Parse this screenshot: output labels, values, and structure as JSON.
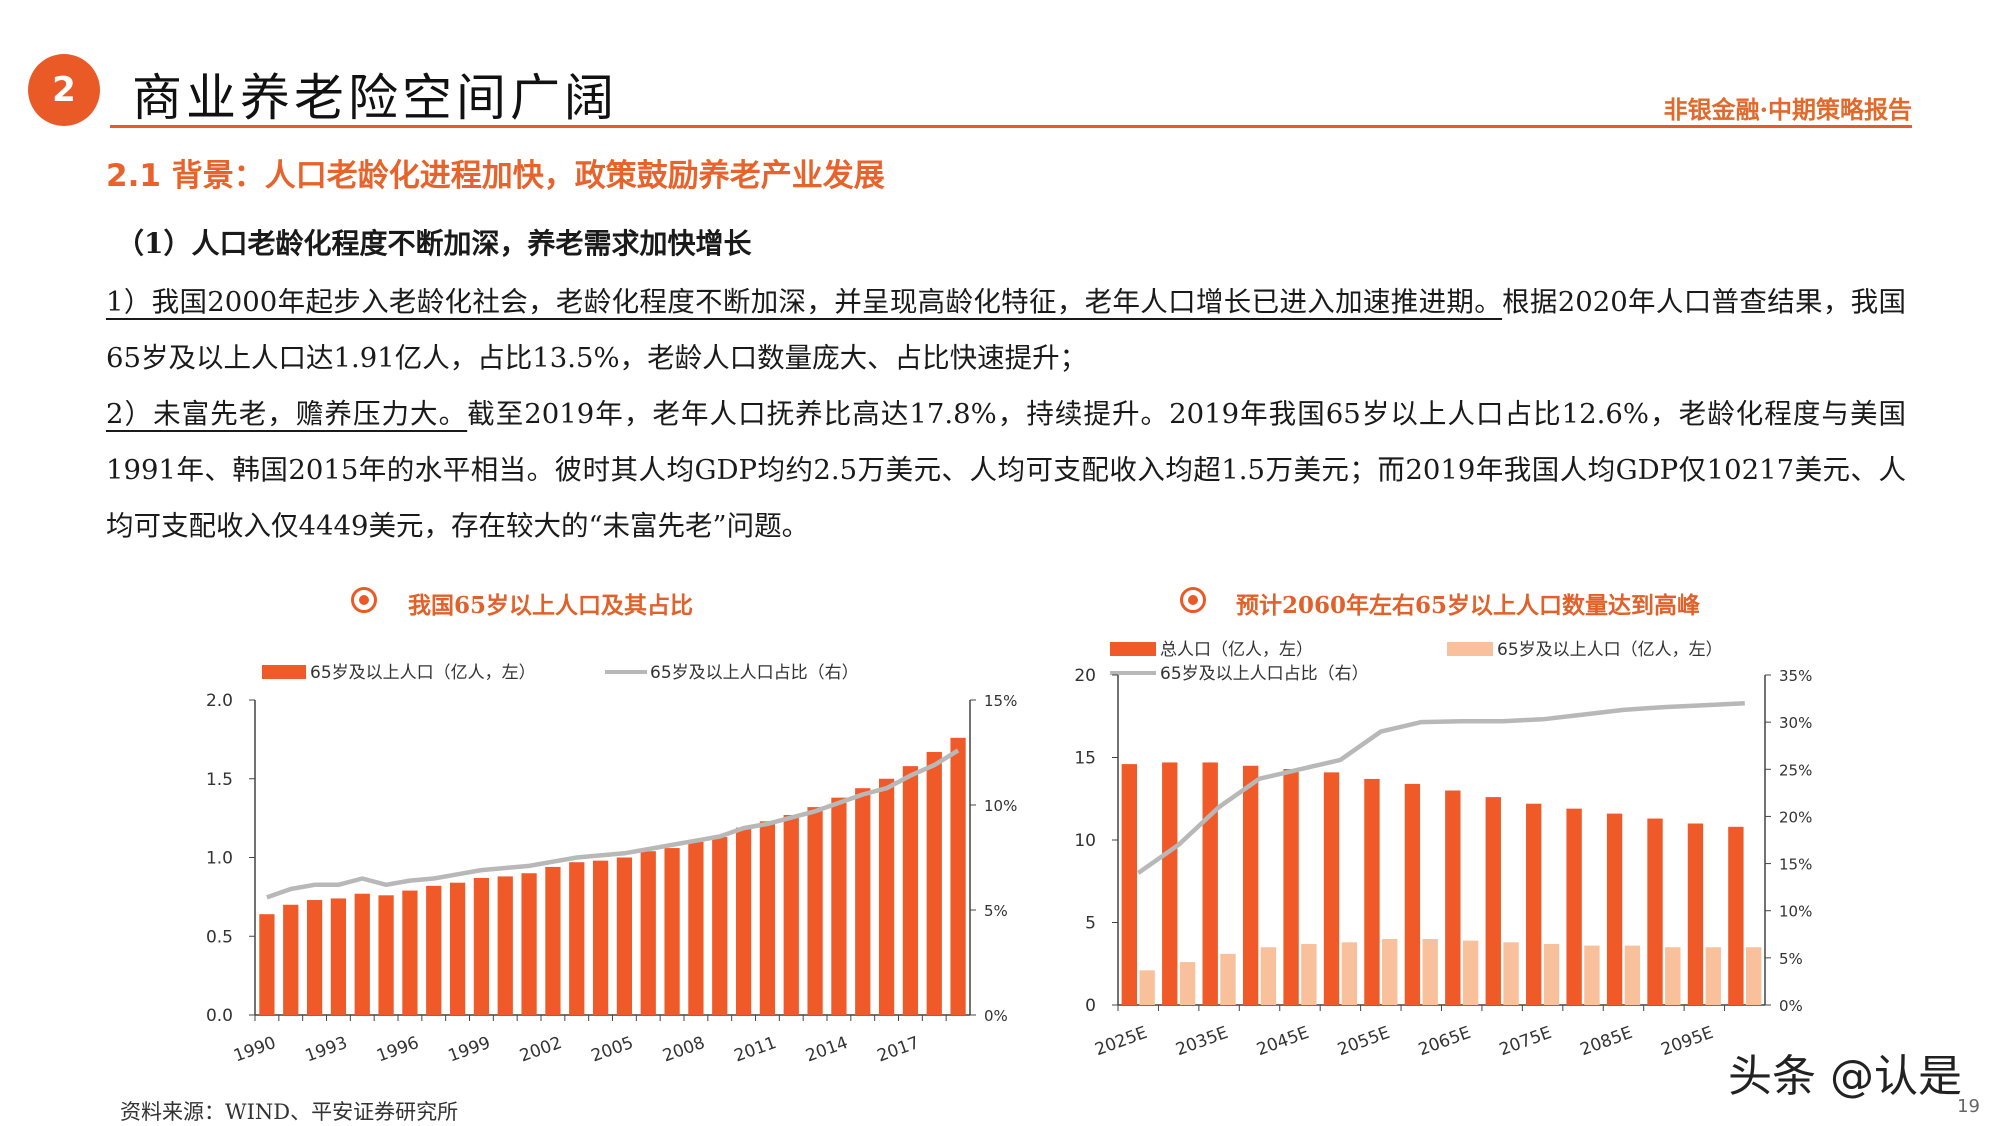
{
  "header": {
    "section_number": "2",
    "title": "商业养老险空间广阔",
    "brand": "非银金融·中期策略报告"
  },
  "subheading": {
    "num": "2.1",
    "text": " 背景：人口老龄化进程加快，政策鼓励养老产业发展"
  },
  "point_title": "（1）人口老龄化程度不断加深，养老需求加快增长",
  "para1": {
    "underlined": "1）我国2000年起步入老龄化社会，老龄化程度不断加深，并呈现高龄化特征，老年人口增长已进入加速推进期。",
    "rest": "根据2020年人口普查结果，我国65岁及以上人口达1.91亿人，占比13.5%，老龄人口数量庞大、占比快速提升；"
  },
  "para2": {
    "underlined": "2）未富先老，赡养压力大。",
    "rest": "截至2019年，老年人口抚养比高达17.8%，持续提升。2019年我国65岁以上人口占比12.6%，老龄化程度与美国1991年、韩国2015年的水平相当。彼时其人均GDP均约2.5万美元、人均可支配收入均超1.5万美元；而2019年我国人均GDP仅10217美元、人均可支配收入仅4449美元，存在较大的“未富先老”问题。"
  },
  "footer": {
    "source": "资料来源：WIND、平安证券研究所",
    "page": "19",
    "watermark": "头条 @认是"
  },
  "colors": {
    "accent": "#ea5a26",
    "bar": "#ef5a28",
    "bar_light": "#f8c09b",
    "line": "#b8b8b8"
  },
  "chart_data": [
    {
      "type": "bar",
      "title": "我国65岁以上人口及其占比",
      "legend_bar": "65岁及以上人口（亿人，左）",
      "legend_line": "65岁及以上人口占比（右）",
      "categories": [
        "1990",
        "1991",
        "1992",
        "1993",
        "1994",
        "1995",
        "1996",
        "1997",
        "1998",
        "1999",
        "2000",
        "2001",
        "2002",
        "2003",
        "2004",
        "2005",
        "2006",
        "2007",
        "2008",
        "2009",
        "2010",
        "2011",
        "2012",
        "2013",
        "2014",
        "2015",
        "2016",
        "2017",
        "2018",
        "2019"
      ],
      "xtick_labels": [
        "1990",
        "1993",
        "1996",
        "1999",
        "2002",
        "2005",
        "2008",
        "2011",
        "2014",
        "2017"
      ],
      "series": [
        {
          "name": "65岁及以上人口（亿人，左）",
          "axis": "left",
          "values": [
            0.64,
            0.7,
            0.73,
            0.74,
            0.77,
            0.76,
            0.79,
            0.82,
            0.84,
            0.87,
            0.88,
            0.9,
            0.94,
            0.97,
            0.98,
            1.0,
            1.04,
            1.06,
            1.1,
            1.13,
            1.19,
            1.23,
            1.27,
            1.32,
            1.38,
            1.44,
            1.5,
            1.58,
            1.67,
            1.76
          ]
        },
        {
          "name": "65岁及以上人口占比（右）",
          "axis": "right",
          "values": [
            5.6,
            6.0,
            6.2,
            6.2,
            6.5,
            6.2,
            6.4,
            6.5,
            6.7,
            6.9,
            7.0,
            7.1,
            7.3,
            7.5,
            7.6,
            7.7,
            7.9,
            8.1,
            8.3,
            8.5,
            8.9,
            9.1,
            9.4,
            9.7,
            10.1,
            10.5,
            10.8,
            11.4,
            11.9,
            12.6
          ]
        }
      ],
      "ylim_left": [
        0,
        2.0
      ],
      "yticks_left": [
        "0.0",
        "0.5",
        "1.0",
        "1.5",
        "2.0"
      ],
      "ylim_right": [
        0,
        15
      ],
      "yticks_right": [
        "0%",
        "5%",
        "10%",
        "15%"
      ]
    },
    {
      "type": "bar",
      "title": "预计2060年左右65岁以上人口数量达到高峰",
      "legend_total": "总人口（亿人，左）",
      "legend_elderly": "65岁及以上人口（亿人，左）",
      "legend_line": "65岁及以上人口占比（右）",
      "categories": [
        "2025E",
        "2030E",
        "2035E",
        "2040E",
        "2045E",
        "2050E",
        "2055E",
        "2060E",
        "2065E",
        "2070E",
        "2075E",
        "2080E",
        "2085E",
        "2090E",
        "2095E",
        "2100E"
      ],
      "xtick_labels": [
        "2025E",
        "2035E",
        "2045E",
        "2055E",
        "2065E",
        "2075E",
        "2085E",
        "2095E"
      ],
      "series": [
        {
          "name": "总人口（亿人，左）",
          "axis": "left",
          "values": [
            14.6,
            14.7,
            14.7,
            14.5,
            14.3,
            14.1,
            13.7,
            13.4,
            13.0,
            12.6,
            12.2,
            11.9,
            11.6,
            11.3,
            11.0,
            10.8
          ]
        },
        {
          "name": "65岁及以上人口（亿人，左）",
          "axis": "left",
          "values": [
            2.1,
            2.6,
            3.1,
            3.5,
            3.7,
            3.8,
            4.0,
            4.0,
            3.9,
            3.8,
            3.7,
            3.6,
            3.6,
            3.5,
            3.5,
            3.5
          ]
        },
        {
          "name": "65岁及以上人口占比（右）",
          "axis": "right",
          "values": [
            14.0,
            17.0,
            21.0,
            24.0,
            25.0,
            26.0,
            29.0,
            30.0,
            30.1,
            30.1,
            30.3,
            30.8,
            31.3,
            31.6,
            31.8,
            32.0
          ]
        }
      ],
      "ylim_left": [
        0,
        20
      ],
      "yticks_left": [
        "0",
        "5",
        "10",
        "15",
        "20"
      ],
      "ylim_right": [
        0,
        35
      ],
      "yticks_right": [
        "0%",
        "5%",
        "10%",
        "15%",
        "20%",
        "25%",
        "30%",
        "35%"
      ]
    }
  ]
}
